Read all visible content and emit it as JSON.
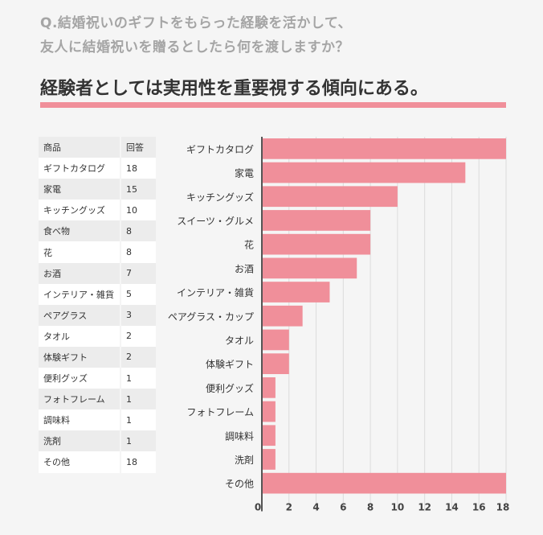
{
  "question": {
    "line1": "Q.結婚祝いのギフトをもらった経験を活かして、",
    "line2": "友人に結婚祝いを贈るとしたら何を渡しますか？"
  },
  "headline": "経験者としては実用性を重要視する傾向にある。",
  "table": {
    "headers": [
      "商品",
      "回答"
    ],
    "rows": [
      [
        "ギフトカタログ",
        "18"
      ],
      [
        "家電",
        "15"
      ],
      [
        "キッチングッズ",
        "10"
      ],
      [
        "食べ物",
        "8"
      ],
      [
        "花",
        "8"
      ],
      [
        "お酒",
        "7"
      ],
      [
        "インテリア・雑貨",
        "5"
      ],
      [
        "ペアグラス",
        "3"
      ],
      [
        "タオル",
        "2"
      ],
      [
        "体験ギフト",
        "2"
      ],
      [
        "便利グッズ",
        "1"
      ],
      [
        "フォトフレーム",
        "1"
      ],
      [
        "調味料",
        "1"
      ],
      [
        "洗剤",
        "1"
      ],
      [
        "その他",
        "18"
      ]
    ]
  },
  "chart_data": {
    "type": "bar",
    "orientation": "horizontal",
    "categories": [
      "ギフトカタログ",
      "家電",
      "キッチングッズ",
      "スイーツ・グルメ",
      "花",
      "お酒",
      "インテリア・雑貨",
      "ペアグラス・カップ",
      "タオル",
      "体験ギフト",
      "便利グッズ",
      "フォトフレーム",
      "調味料",
      "洗剤",
      "その他"
    ],
    "values": [
      18,
      15,
      10,
      8,
      8,
      7,
      5,
      3,
      2,
      2,
      1,
      1,
      1,
      1,
      18
    ],
    "xlim": [
      0,
      18
    ],
    "xticks": [
      0,
      2,
      4,
      6,
      8,
      10,
      12,
      14,
      16,
      18
    ],
    "grid": true,
    "bar_color": "#f08f9a"
  }
}
